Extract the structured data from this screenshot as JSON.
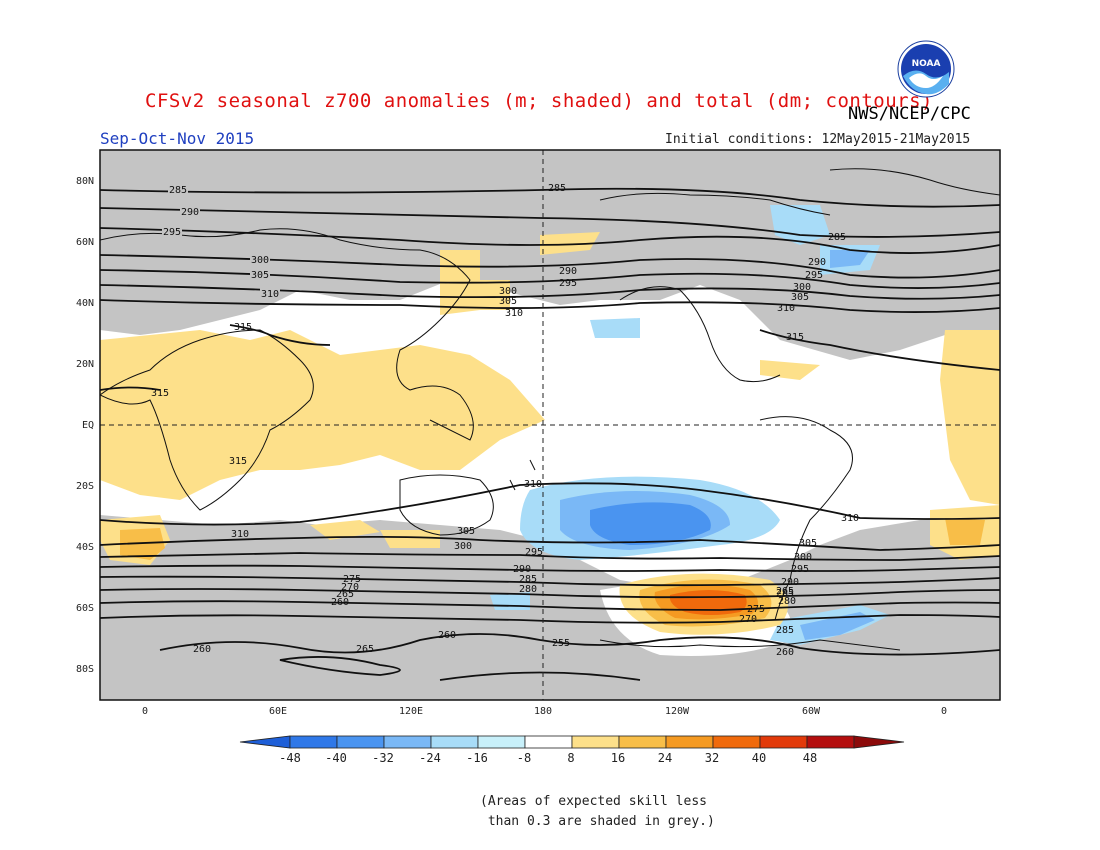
{
  "header": {
    "title": "CFSv2 seasonal z700 anomalies (m; shaded) and total (dm; contours)",
    "agency": "NWS/NCEP/CPC",
    "period": "Sep-Oct-Nov 2015",
    "initial_conditions": "Initial conditions: 12May2015-21May2015",
    "logo_text": "NOAA"
  },
  "axes": {
    "lat_labels": [
      "80N",
      "60N",
      "40N",
      "20N",
      "EQ",
      "20S",
      "40S",
      "60S",
      "80S"
    ],
    "lon_labels": [
      "0",
      "60E",
      "120E",
      "180",
      "120W",
      "60W",
      "0"
    ]
  },
  "contour_labels": {
    "north": [
      "285",
      "290",
      "295",
      "300",
      "305",
      "310",
      "315"
    ],
    "north_pacific": [
      "285",
      "290",
      "295",
      "300",
      "305",
      "310"
    ],
    "north_atlantic": [
      "285",
      "290",
      "295",
      "300",
      "305",
      "310",
      "315"
    ],
    "tropics": [
      "315",
      "315",
      "310",
      "310",
      "310"
    ],
    "south": [
      "305",
      "300",
      "295",
      "290",
      "285",
      "280",
      "275",
      "270",
      "265",
      "260",
      "255"
    ],
    "south_america": [
      "305",
      "300",
      "295",
      "290",
      "285",
      "280",
      "275",
      "270",
      "265",
      "260"
    ]
  },
  "legend": {
    "ticks": [
      "-48",
      "-40",
      "-32",
      "-24",
      "-16",
      "-8",
      "8",
      "16",
      "24",
      "32",
      "40",
      "48"
    ],
    "colors": [
      "#1e5fd8",
      "#2f78e8",
      "#4a94f0",
      "#7ab8f6",
      "#a8dcf8",
      "#c8f0fa",
      "#ffffff",
      "#fde08a",
      "#f8be48",
      "#f59a22",
      "#f06a0c",
      "#e23a0a",
      "#b40e0e",
      "#8c0a0a"
    ]
  },
  "note": "(Areas of expected skill less\n than 0.3 are shaded in grey.)",
  "colors": {
    "skill_grey": "#c4c4c4",
    "title_red": "#e01010",
    "period_blue": "#2040c0"
  }
}
